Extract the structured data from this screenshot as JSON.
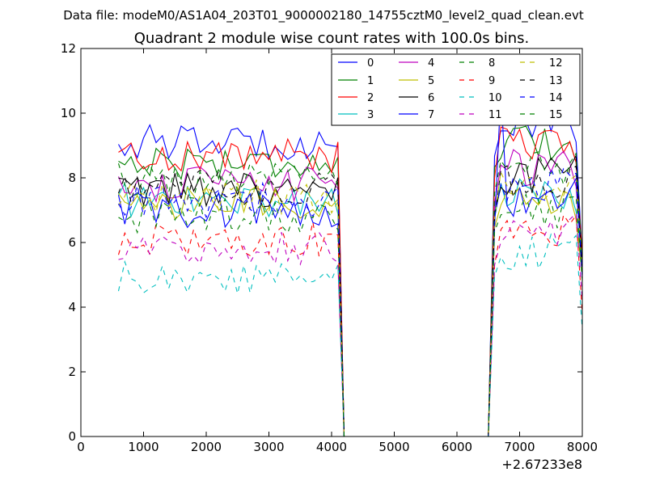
{
  "chart_data": {
    "type": "line",
    "suptitle": "Data file: modeM0/AS1A04_203T01_9000002180_14755cztM0_level2_quad_clean.evt",
    "title": "Quadrant 2 module wise count rates with 100.0s bins.",
    "xlabel": "",
    "ylabel": "",
    "x_offset_label": "+2.67233e8",
    "xlim": [
      0,
      8000
    ],
    "ylim": [
      0,
      12
    ],
    "xticks": [
      "0",
      "1000",
      "2000",
      "3000",
      "4000",
      "5000",
      "6000",
      "7000",
      "8000"
    ],
    "yticks": [
      "0",
      "2",
      "4",
      "6",
      "8",
      "10",
      "12"
    ],
    "grid": false,
    "legend_position": "top-right",
    "segments": [
      {
        "x_start": 600,
        "x_end": 4100,
        "step": 100
      },
      {
        "x_start": 6600,
        "x_end": 7900,
        "step": 100
      }
    ],
    "gap": {
      "drop_x": [
        4100,
        4200
      ],
      "zero_x": [
        4200,
        6500
      ],
      "rise_x": [
        6500,
        6600
      ],
      "end_x": 8000
    },
    "series": [
      {
        "name": "0",
        "color": "#0000ff",
        "dash": "solid",
        "seg1_level": 9.1,
        "seg2_level": 9.6,
        "end_value": 5.5
      },
      {
        "name": "1",
        "color": "#008000",
        "dash": "solid",
        "seg1_level": 8.5,
        "seg2_level": 9.0,
        "end_value": 5.3
      },
      {
        "name": "2",
        "color": "#ff0000",
        "dash": "solid",
        "seg1_level": 8.7,
        "seg2_level": 9.0,
        "end_value": 5.6
      },
      {
        "name": "3",
        "color": "#00bfbf",
        "dash": "solid",
        "seg1_level": 7.3,
        "seg2_level": 7.5,
        "end_value": 5.0
      },
      {
        "name": "4",
        "color": "#bf00bf",
        "dash": "solid",
        "seg1_level": 7.8,
        "seg2_level": 8.3,
        "end_value": 5.2
      },
      {
        "name": "5",
        "color": "#bfbf00",
        "dash": "solid",
        "seg1_level": 7.2,
        "seg2_level": 7.3,
        "end_value": 5.0
      },
      {
        "name": "6",
        "color": "#000000",
        "dash": "solid",
        "seg1_level": 7.6,
        "seg2_level": 8.1,
        "end_value": 5.1
      },
      {
        "name": "7",
        "color": "#0000ff",
        "dash": "solid",
        "seg1_level": 7.0,
        "seg2_level": 7.4,
        "end_value": 4.9
      },
      {
        "name": "8",
        "color": "#008000",
        "dash": "dashed",
        "seg1_level": 7.9,
        "seg2_level": 8.2,
        "end_value": 5.4
      },
      {
        "name": "9",
        "color": "#ff0000",
        "dash": "dashed",
        "seg1_level": 6.1,
        "seg2_level": 6.3,
        "end_value": 3.8
      },
      {
        "name": "10",
        "color": "#00bfbf",
        "dash": "dashed",
        "seg1_level": 4.9,
        "seg2_level": 5.7,
        "end_value": 3.3
      },
      {
        "name": "11",
        "color": "#bf00bf",
        "dash": "dashed",
        "seg1_level": 5.8,
        "seg2_level": 6.4,
        "end_value": 4.2
      },
      {
        "name": "12",
        "color": "#bfbf00",
        "dash": "dashed",
        "seg1_level": 7.4,
        "seg2_level": 7.6,
        "end_value": 5.0
      },
      {
        "name": "13",
        "color": "#000000",
        "dash": "dashed",
        "seg1_level": 7.7,
        "seg2_level": 7.9,
        "end_value": 5.2
      },
      {
        "name": "14",
        "color": "#0000ff",
        "dash": "dashed",
        "seg1_level": 7.3,
        "seg2_level": 7.7,
        "end_value": 5.0
      },
      {
        "name": "15",
        "color": "#008000",
        "dash": "dashed",
        "seg1_level": 6.8,
        "seg2_level": 7.0,
        "end_value": 4.8
      }
    ]
  }
}
